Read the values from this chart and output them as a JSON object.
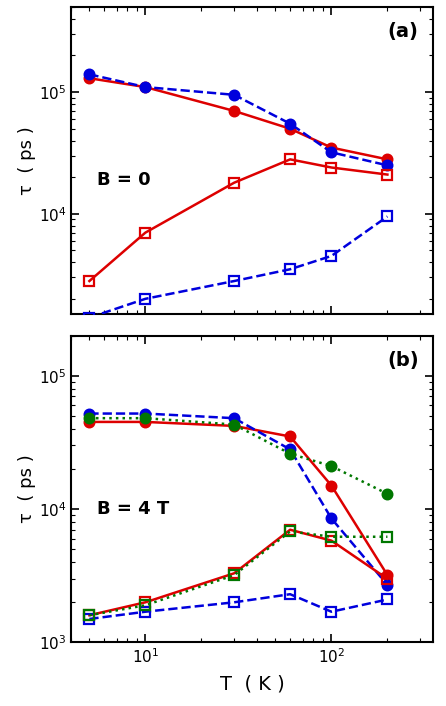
{
  "panel_a": {
    "label": "(a)",
    "annotation": "B = 0",
    "red_circle": {
      "x": [
        5,
        10,
        30,
        60,
        100,
        200
      ],
      "y": [
        130000.0,
        110000.0,
        70000.0,
        50000.0,
        35000.0,
        28000.0
      ],
      "color": "#dd0000",
      "linestyle": "solid",
      "marker": "o"
    },
    "blue_circle": {
      "x": [
        5,
        10,
        30,
        60,
        100,
        200
      ],
      "y": [
        140000.0,
        110000.0,
        95000.0,
        55000.0,
        32000.0,
        25000.0
      ],
      "color": "#0000dd",
      "linestyle": "dashed",
      "marker": "o"
    },
    "red_square": {
      "x": [
        5,
        10,
        30,
        60,
        100,
        200
      ],
      "y": [
        2800,
        7000,
        18000,
        28000,
        24000,
        21000
      ],
      "color": "#dd0000",
      "linestyle": "solid",
      "marker": "s"
    },
    "blue_square": {
      "x": [
        5,
        10,
        30,
        60,
        100,
        200
      ],
      "y": [
        1400,
        2000,
        2800,
        3500,
        4500,
        9500
      ],
      "color": "#0000dd",
      "linestyle": "dashed",
      "marker": "s"
    },
    "ylim": [
      1500,
      500000.0
    ],
    "yticks": [
      10000.0,
      100000.0
    ],
    "ylabel": "τ  ( ps )"
  },
  "panel_b": {
    "label": "(b)",
    "annotation": "B = 4 T",
    "red_circle": {
      "x": [
        5,
        10,
        30,
        60,
        100,
        200
      ],
      "y": [
        45000.0,
        45000.0,
        42000.0,
        35000.0,
        15000.0,
        3200
      ],
      "color": "#dd0000",
      "linestyle": "solid",
      "marker": "o"
    },
    "blue_circle": {
      "x": [
        5,
        10,
        30,
        60,
        100,
        200
      ],
      "y": [
        52000.0,
        52000.0,
        48000.0,
        28000.0,
        8500,
        2700
      ],
      "color": "#0000dd",
      "linestyle": "dashed",
      "marker": "o"
    },
    "green_circle": {
      "x": [
        5,
        10,
        30,
        60,
        100,
        200
      ],
      "y": [
        48000.0,
        48000.0,
        43000.0,
        26000.0,
        21000.0,
        13000.0
      ],
      "color": "#007700",
      "linestyle": "dotted",
      "marker": "o"
    },
    "red_square": {
      "x": [
        5,
        10,
        30,
        60,
        100,
        200
      ],
      "y": [
        1600,
        2000,
        3300,
        7000,
        5800,
        3000
      ],
      "color": "#dd0000",
      "linestyle": "solid",
      "marker": "s"
    },
    "blue_square": {
      "x": [
        5,
        10,
        30,
        60,
        100,
        200
      ],
      "y": [
        1500,
        1700,
        2000,
        2300,
        1700,
        2100
      ],
      "color": "#0000dd",
      "linestyle": "dashed",
      "marker": "s"
    },
    "green_square": {
      "x": [
        5,
        10,
        30,
        60,
        100,
        200
      ],
      "y": [
        1600,
        1900,
        3200,
        6800,
        6200,
        6200
      ],
      "color": "#007700",
      "linestyle": "dotted",
      "marker": "s"
    },
    "ylim": [
      1000.0,
      200000.0
    ],
    "ylabel": "τ  ( ps )"
  },
  "xlabel": "T  ( K )",
  "xlim": [
    4,
    350
  ],
  "axes_bg": "#ffffff",
  "fig_bg": "#ffffff",
  "linewidth": 1.8,
  "markersize": 7,
  "markeredgewidth": 1.6
}
